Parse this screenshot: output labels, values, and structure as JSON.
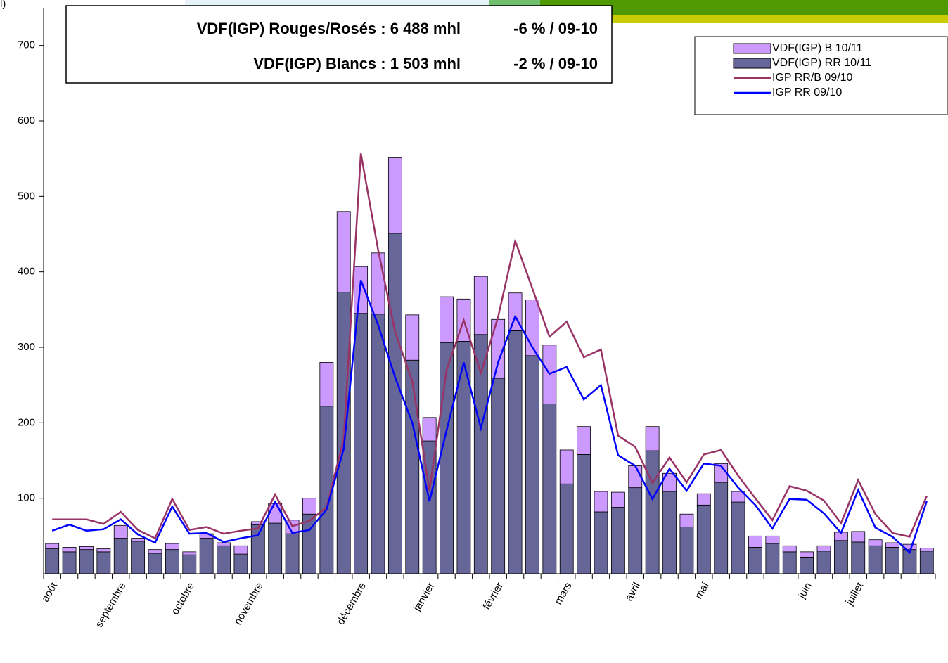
{
  "chart_data": {
    "type": "bar-line",
    "annotations": [
      "l)",
      "VDF(IGP) Rouges/Rosés : 6 488 mhl",
      "-6 % / 09-10",
      "VDF(IGP) Blancs : 1 503 mhl",
      "-2 % / 09-10"
    ],
    "categories": [
      "août",
      null,
      null,
      null,
      "septembre",
      null,
      null,
      null,
      "octobre",
      null,
      null,
      null,
      "novembre",
      null,
      null,
      null,
      null,
      null,
      "décembre",
      null,
      null,
      null,
      "janvier",
      null,
      null,
      null,
      "février",
      null,
      null,
      null,
      "mars",
      null,
      null,
      null,
      "avril",
      null,
      null,
      null,
      "mai",
      null,
      null,
      null,
      null,
      null,
      "juin",
      null,
      null,
      "juillet",
      null,
      null,
      null,
      null
    ],
    "series": [
      {
        "name": "VDF(IGP) B 10/11",
        "kind": "bar",
        "color": "#cc99ff",
        "values": [
          7,
          6,
          4,
          4,
          17,
          4,
          5,
          8,
          4,
          6,
          4,
          11,
          4,
          26,
          18,
          21,
          58,
          107,
          62,
          81,
          100,
          60,
          31,
          61,
          56,
          77,
          78,
          50,
          74,
          78,
          45,
          37,
          27,
          20,
          29,
          32,
          24,
          17,
          15,
          25,
          14,
          15,
          10,
          8,
          7,
          7,
          11,
          14,
          8,
          6,
          7,
          4
        ]
      },
      {
        "name": "VDF(IGP) RR 10/11",
        "kind": "bar",
        "color": "#666699",
        "values": [
          33,
          29,
          32,
          29,
          47,
          43,
          27,
          32,
          25,
          47,
          37,
          26,
          65,
          67,
          53,
          79,
          222,
          373,
          345,
          344,
          451,
          283,
          176,
          306,
          308,
          317,
          259,
          322,
          289,
          225,
          119,
          158,
          82,
          88,
          114,
          163,
          109,
          62,
          91,
          121,
          95,
          35,
          40,
          29,
          22,
          30,
          44,
          42,
          37,
          35,
          32,
          30
        ]
      },
      {
        "name": "IGP RR/B 09/10",
        "kind": "line",
        "color": "#993366",
        "values": [
          72,
          72,
          72,
          66,
          82,
          58,
          47,
          99,
          58,
          62,
          53,
          57,
          60,
          105,
          63,
          70,
          88,
          178,
          557,
          430,
          320,
          255,
          110,
          270,
          336,
          266,
          340,
          441,
          378,
          314,
          334,
          287,
          297,
          183,
          168,
          120,
          154,
          121,
          158,
          164,
          130,
          100,
          71,
          116,
          110,
          97,
          67,
          124,
          79,
          54,
          49,
          103
        ]
      },
      {
        "name": "IGP RR 09/10",
        "kind": "line",
        "color": "#0000ff",
        "values": [
          57,
          65,
          57,
          59,
          72,
          52,
          41,
          89,
          53,
          54,
          42,
          47,
          51,
          95,
          54,
          58,
          85,
          165,
          389,
          330,
          260,
          200,
          96,
          190,
          280,
          193,
          280,
          341,
          300,
          265,
          274,
          231,
          250,
          157,
          143,
          99,
          139,
          110,
          146,
          143,
          114,
          91,
          60,
          99,
          98,
          80,
          54,
          111,
          61,
          49,
          28,
          96
        ]
      }
    ],
    "ylim": [
      0,
      750
    ],
    "yticks": [
      100,
      200,
      300,
      400,
      500,
      600,
      700
    ],
    "legend": "top-right"
  }
}
